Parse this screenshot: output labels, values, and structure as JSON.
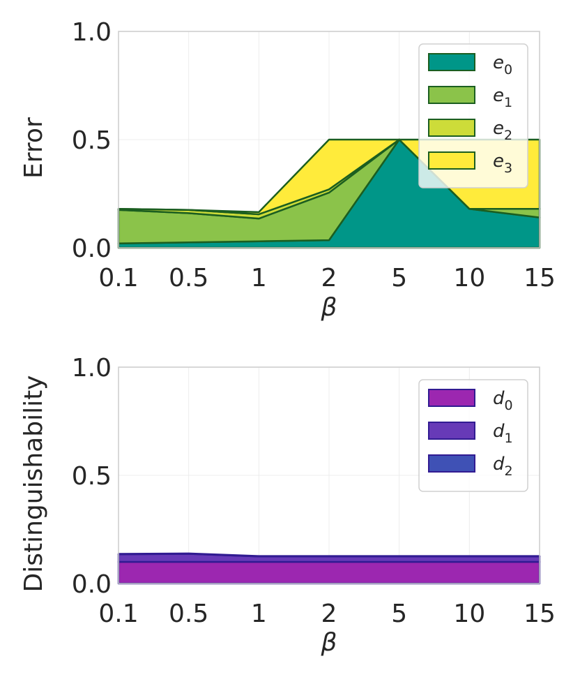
{
  "chart_data": [
    {
      "type": "area",
      "stacked": true,
      "categories": [
        "0.1",
        "0.5",
        "1",
        "2",
        "5",
        "10",
        "15"
      ],
      "xlabel": "β",
      "ylabel": "Error",
      "ylim": [
        0,
        1.0
      ],
      "yticks": [
        "0.0",
        "0.5",
        "1.0"
      ],
      "grid": true,
      "legend_position": "top-right",
      "outline_color": "#1b5e20",
      "series": [
        {
          "name": "e0",
          "sub": "0",
          "letter": "e",
          "color": "#009688",
          "values": [
            0.02,
            0.025,
            0.03,
            0.035,
            0.5,
            0.18,
            0.14
          ]
        },
        {
          "name": "e1",
          "sub": "1",
          "letter": "e",
          "color": "#8bc34a",
          "values": [
            0.155,
            0.135,
            0.105,
            0.22,
            0.0,
            0.0,
            0.04
          ]
        },
        {
          "name": "e2",
          "sub": "2",
          "letter": "e",
          "color": "#cddc39",
          "values": [
            0.005,
            0.015,
            0.02,
            0.015,
            0.0,
            0.0,
            0.0
          ]
        },
        {
          "name": "e3",
          "sub": "3",
          "letter": "e",
          "color": "#ffeb3b",
          "values": [
            0.0,
            0.0,
            0.01,
            0.23,
            0.0,
            0.32,
            0.32
          ]
        }
      ]
    },
    {
      "type": "area",
      "stacked": true,
      "categories": [
        "0.1",
        "0.5",
        "1",
        "2",
        "5",
        "10",
        "15"
      ],
      "xlabel": "β",
      "ylabel": "Distinguishability",
      "ylim": [
        0,
        1.0
      ],
      "yticks": [
        "0.0",
        "0.5",
        "1.0"
      ],
      "grid": true,
      "legend_position": "top-right",
      "outline_color": "#311b92",
      "series": [
        {
          "name": "d0",
          "sub": "0",
          "letter": "d",
          "color": "#9c27b0",
          "values": [
            0.1,
            0.1,
            0.1,
            0.1,
            0.1,
            0.1,
            0.1
          ]
        },
        {
          "name": "d1",
          "sub": "1",
          "letter": "d",
          "color": "#673ab7",
          "values": [
            0.035,
            0.037,
            0.025,
            0.025,
            0.025,
            0.025,
            0.025
          ]
        },
        {
          "name": "d2",
          "sub": "2",
          "letter": "d",
          "color": "#3f51b5",
          "values": [
            0.002,
            0.002,
            0.002,
            0.002,
            0.002,
            0.002,
            0.002
          ]
        }
      ]
    }
  ]
}
